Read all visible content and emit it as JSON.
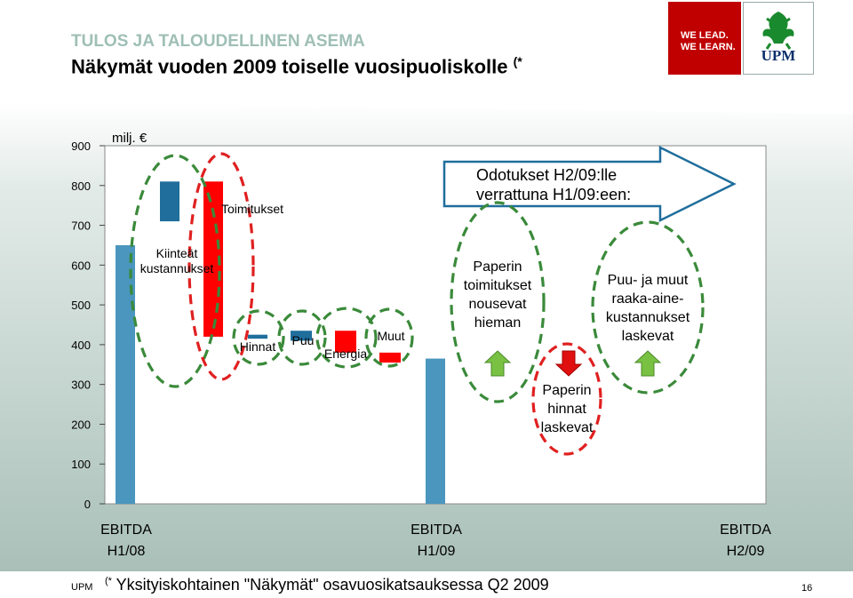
{
  "header": {
    "section_title": "TULOS JA TALOUDELLINEN ASEMA",
    "title": "Näkymät vuoden 2009 toiselle vuosipuoliskolle",
    "title_note": "(*",
    "logo_text_1": "WE LEAD.",
    "logo_text_2": "WE LEARN.",
    "logo_brand": "UPM"
  },
  "footer": {
    "company": "UPM",
    "note_mark": "(*",
    "note": "Yksityiskohtainen \"Näkymät\" osavuosikatsauksessa Q2 2009",
    "page": "16"
  },
  "colors": {
    "total_bar": "#4a96be",
    "increase": "#1f6e9c",
    "decrease": "#ff0000",
    "green_circle": "#3a8a3a",
    "red_circle": "#e02020",
    "up_arrow": "#79c143",
    "down_arrow": "#e01010",
    "outlook_arrow_border": "#1f6e9c",
    "background_band": "#b9ccc6"
  },
  "chart_data": {
    "type": "bar",
    "unit_label": "milj. €",
    "ylim": [
      0,
      900
    ],
    "yticks": [
      0,
      100,
      200,
      300,
      400,
      500,
      600,
      700,
      800,
      900
    ],
    "totals": [
      {
        "label_line1": "EBITDA",
        "label_line2": "H1/08",
        "value": 650
      },
      {
        "label_line1": "EBITDA",
        "label_line2": "H1/09",
        "value": 365
      },
      {
        "label_line1": "EBITDA",
        "label_line2": "H2/09",
        "value": null
      }
    ],
    "bridge_steps": [
      {
        "label": "Kiinteät kustannukset",
        "low": 710,
        "high": 810,
        "kind": "increase"
      },
      {
        "label": "Toimitukset",
        "low": 420,
        "high": 810,
        "kind": "decrease"
      },
      {
        "label": "Hinnat",
        "low": 415,
        "high": 425,
        "kind": "increase"
      },
      {
        "label": "Puu",
        "low": 410,
        "high": 435,
        "kind": "increase"
      },
      {
        "label": "Energia",
        "low": 380,
        "high": 435,
        "kind": "decrease"
      },
      {
        "label": "Muut",
        "low": 355,
        "high": 380,
        "kind": "decrease"
      }
    ],
    "outlook_header": "Odotukset H2/09:lle verrattuna H1/09:een:",
    "outlook_header_lines": [
      "Odotukset H2/09:lle",
      "verrattuna H1/09:een:"
    ],
    "outlooks": [
      {
        "lines": [
          "Paperin",
          "toimitukset",
          "nousevat",
          "hieman"
        ],
        "direction": "up"
      },
      {
        "lines": [
          "Paperin",
          "hinnat",
          "laskevat"
        ],
        "direction": "down"
      },
      {
        "lines": [
          "Puu- ja muut",
          "raaka-aine-",
          "kustannukset",
          "laskevat"
        ],
        "direction": "up"
      }
    ]
  }
}
